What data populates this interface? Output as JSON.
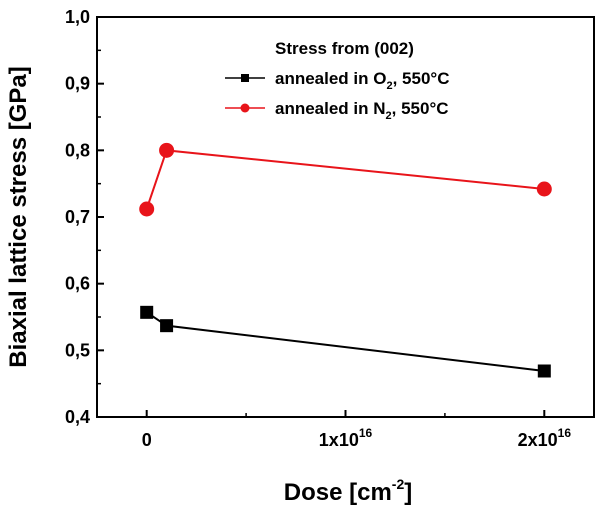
{
  "chart_data": {
    "type": "line",
    "xlabel": "Dose [cm",
    "xlabel_sup": "-2",
    "xlabel_suffix": "]",
    "ylabel": "Biaxial lattice stress [GPa]",
    "xlim": [
      -2500000000000000.0,
      2.25e+16
    ],
    "ylim": [
      0.4,
      1.0
    ],
    "yticks": [
      0.4,
      0.5,
      0.6,
      0.7,
      0.8,
      0.9,
      1.0
    ],
    "ytick_labels": [
      "0,4",
      "0,5",
      "0,6",
      "0,7",
      "0,8",
      "0,9",
      "1,0"
    ],
    "xticks": [
      {
        "value": 0,
        "base": "0",
        "sup": ""
      },
      {
        "value": 1e+16,
        "base": "1x10",
        "sup": "16"
      },
      {
        "value": 2e+16,
        "base": "2x10",
        "sup": "16"
      }
    ],
    "xminor": [
      5000000000000000.0,
      1.5e+16
    ],
    "yminor": [
      0.45,
      0.55,
      0.65,
      0.75,
      0.85,
      0.95
    ],
    "legend": {
      "title": "Stress from (002)",
      "position": "top-right"
    },
    "series": [
      {
        "name": "annealed in O2, 550°C",
        "label_pre": "annealed in O",
        "label_sub": "2",
        "label_post": ", 550°C",
        "color": "#000000",
        "marker": "square",
        "x": [
          0,
          1000000000000000.0,
          2e+16
        ],
        "y": [
          0.557,
          0.537,
          0.469
        ]
      },
      {
        "name": "annealed in N2, 550°C",
        "label_pre": "annealed in N",
        "label_sub": "2",
        "label_post": ", 550°C",
        "color": "#e8141a",
        "marker": "circle",
        "x": [
          0,
          1000000000000000.0,
          2e+16
        ],
        "y": [
          0.712,
          0.8,
          0.742
        ]
      }
    ]
  }
}
